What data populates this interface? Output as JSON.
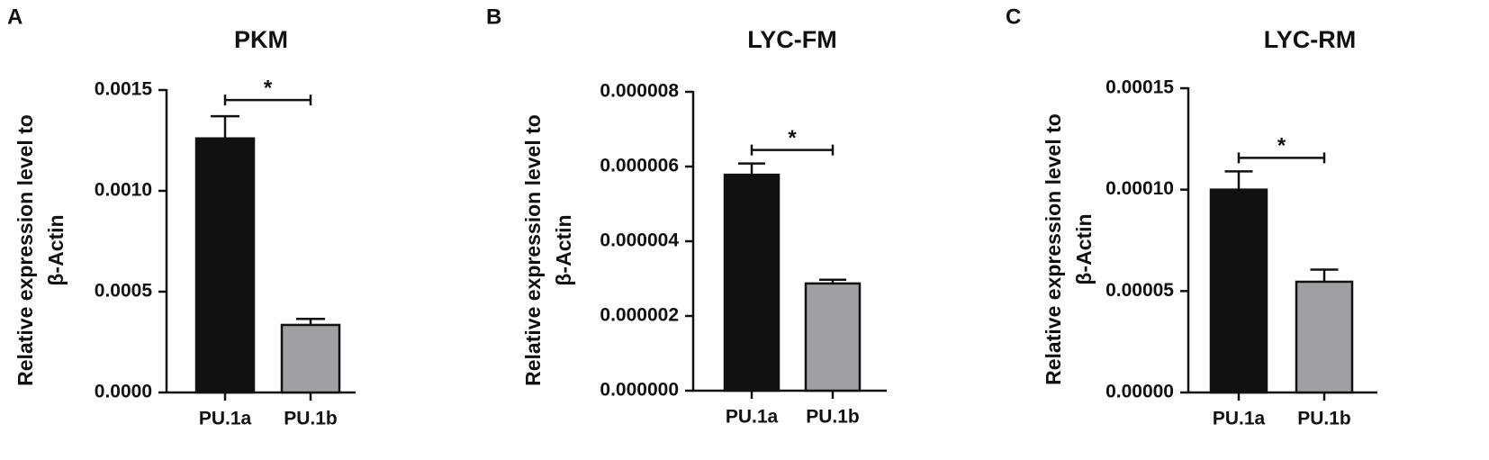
{
  "chart_data": [
    {
      "type": "bar",
      "panel_label": "A",
      "title": "PKM",
      "ylabel_lines": [
        "Relative expression level to",
        "β-Actin"
      ],
      "categories": [
        "PU.1a",
        "PU.1b"
      ],
      "values": [
        0.00126,
        0.000335
      ],
      "errors": [
        0.00011,
        3e-05
      ],
      "colors": [
        "#111111",
        "#a0a0a4"
      ],
      "ylim": [
        0,
        0.0015
      ],
      "yticks": [
        {
          "value": 0,
          "label": "0.0000"
        },
        0.0005,
        {
          "value": 0.001,
          "label": "0.0010"
        },
        0.0015
      ],
      "annotation": "*"
    },
    {
      "type": "bar",
      "panel_label": "B",
      "title": "LYC-FM",
      "ylabel_lines": [
        "Relative expression level to",
        "β-Actin"
      ],
      "categories": [
        "PU.1a",
        "PU.1b"
      ],
      "values": [
        5.78e-06,
        2.87e-06
      ],
      "errors": [
        3e-07,
        1e-07
      ],
      "colors": [
        "#111111",
        "#a0a0a4"
      ],
      "ylim": [
        0,
        8e-06
      ],
      "yticks": [
        {
          "value": 0,
          "label": "0.000000"
        },
        2e-06,
        4e-06,
        6e-06,
        8e-06
      ],
      "annotation": "*"
    },
    {
      "type": "bar",
      "panel_label": "C",
      "title": "LYC-RM",
      "ylabel_lines": [
        "Relative expression level to",
        "β-Actin"
      ],
      "categories": [
        "PU.1a",
        "PU.1b"
      ],
      "values": [
        0.0001,
        5.46e-05
      ],
      "errors": [
        9e-06,
        6e-06
      ],
      "colors": [
        "#111111",
        "#a0a0a4"
      ],
      "ylim": [
        0,
        0.00015
      ],
      "yticks": [
        {
          "value": 0,
          "label": "0.00000"
        },
        5e-05,
        {
          "value": 0.0001,
          "label": "0.00010"
        },
        0.00015
      ],
      "annotation": "*"
    }
  ]
}
